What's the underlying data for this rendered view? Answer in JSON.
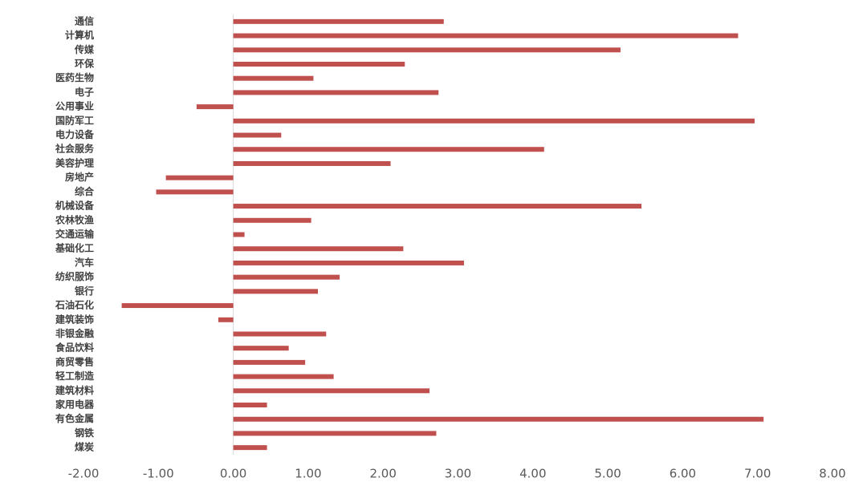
{
  "chart_data": {
    "type": "hbar",
    "categories": [
      "通信",
      "计算机",
      "传媒",
      "环保",
      "医药生物",
      "电子",
      "公用事业",
      "国防军工",
      "电力设备",
      "社会服务",
      "美容护理",
      "房地产",
      "综合",
      "机械设备",
      "农林牧渔",
      "交通运输",
      "基础化工",
      "汽车",
      "纺织服饰",
      "银行",
      "石油石化",
      "建筑装饰",
      "非银金融",
      "食品饮料",
      "商贸零售",
      "轻工制造",
      "建筑材料",
      "家用电器",
      "有色金属",
      "钢铁",
      "煤炭"
    ],
    "values": [
      2.81,
      6.74,
      5.17,
      2.29,
      1.07,
      2.74,
      -0.49,
      6.96,
      0.64,
      4.15,
      2.1,
      -0.9,
      -1.03,
      5.45,
      1.04,
      0.15,
      2.27,
      3.08,
      1.42,
      1.13,
      -1.49,
      -0.2,
      1.24,
      0.74,
      0.96,
      1.34,
      2.62,
      0.45,
      7.08,
      2.71,
      0.45
    ],
    "color": "#c0504d",
    "xlim": [
      -2,
      8
    ],
    "xticks": [
      {
        "value": -2,
        "label": "-2.00"
      },
      {
        "value": -1,
        "label": "-1.00"
      },
      {
        "value": 0,
        "label": "0.00"
      },
      {
        "value": 1,
        "label": "1.00"
      },
      {
        "value": 2,
        "label": "2.00"
      },
      {
        "value": 3,
        "label": "3.00"
      },
      {
        "value": 4,
        "label": "4.00"
      },
      {
        "value": 5,
        "label": "5.00"
      },
      {
        "value": 6,
        "label": "6.00"
      },
      {
        "value": 7,
        "label": "7.00"
      },
      {
        "value": 8,
        "label": "8.00"
      }
    ],
    "grid": false
  }
}
